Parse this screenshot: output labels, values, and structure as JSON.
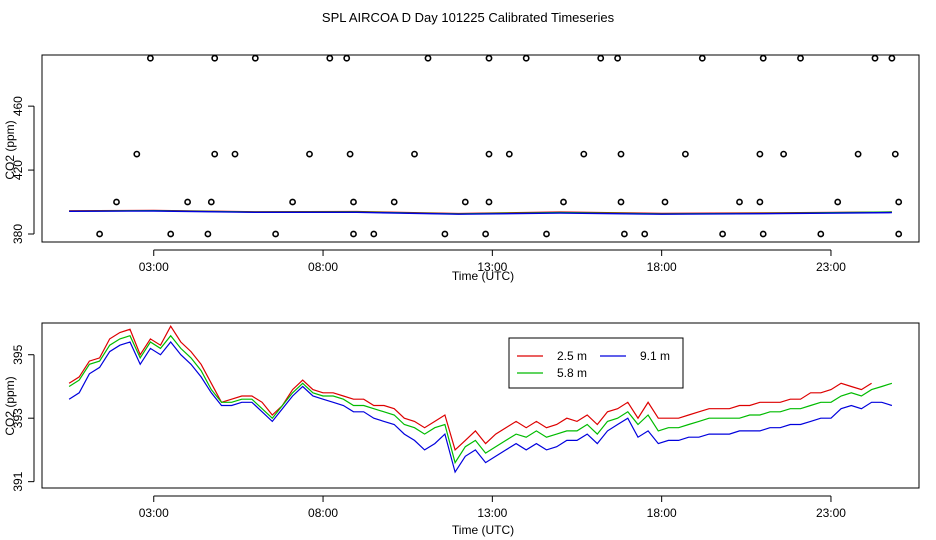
{
  "title": "SPL AIRCOA D  Day 101225  Calibrated Timeseries",
  "colors": {
    "s25": "#dd0000",
    "s58": "#00bb00",
    "s91": "#0000dd",
    "axis": "#000000"
  },
  "chart_data": [
    {
      "type": "scatter",
      "xlabel": "Time (UTC)",
      "ylabel": "CO2 (ppm)",
      "xlim": [
        -0.3,
        25.6
      ],
      "ylim": [
        375,
        492
      ],
      "xticks": [
        3,
        8,
        13,
        18,
        23
      ],
      "xtick_labels": [
        "03:00",
        "08:00",
        "13:00",
        "18:00",
        "23:00"
      ],
      "yticks": [
        380,
        420,
        460
      ],
      "ytick_labels": [
        "380",
        "420",
        "460"
      ],
      "points": [
        [
          1.4,
          380
        ],
        [
          1.9,
          400
        ],
        [
          2.5,
          430
        ],
        [
          2.9,
          490
        ],
        [
          3.5,
          380
        ],
        [
          4.0,
          400
        ],
        [
          4.6,
          380
        ],
        [
          4.7,
          400
        ],
        [
          4.8,
          430
        ],
        [
          4.8,
          490
        ],
        [
          5.4,
          430
        ],
        [
          6.0,
          490
        ],
        [
          6.6,
          380
        ],
        [
          7.1,
          400
        ],
        [
          7.6,
          430
        ],
        [
          8.2,
          490
        ],
        [
          8.7,
          490
        ],
        [
          8.8,
          430
        ],
        [
          8.9,
          400
        ],
        [
          8.9,
          380
        ],
        [
          9.5,
          380
        ],
        [
          10.1,
          400
        ],
        [
          10.7,
          430
        ],
        [
          11.1,
          490
        ],
        [
          11.6,
          380
        ],
        [
          12.2,
          400
        ],
        [
          12.8,
          380
        ],
        [
          12.9,
          400
        ],
        [
          12.9,
          430
        ],
        [
          12.9,
          490
        ],
        [
          13.5,
          430
        ],
        [
          14.0,
          490
        ],
        [
          14.6,
          380
        ],
        [
          15.1,
          400
        ],
        [
          15.7,
          430
        ],
        [
          16.2,
          490
        ],
        [
          16.7,
          490
        ],
        [
          16.8,
          430
        ],
        [
          16.8,
          400
        ],
        [
          16.9,
          380
        ],
        [
          17.5,
          380
        ],
        [
          18.1,
          400
        ],
        [
          18.7,
          430
        ],
        [
          19.2,
          490
        ],
        [
          19.8,
          380
        ],
        [
          20.3,
          400
        ],
        [
          20.9,
          430
        ],
        [
          20.9,
          400
        ],
        [
          21.0,
          490
        ],
        [
          21.0,
          380
        ],
        [
          21.6,
          430
        ],
        [
          22.1,
          490
        ],
        [
          22.7,
          380
        ],
        [
          23.2,
          400
        ],
        [
          23.8,
          430
        ],
        [
          24.3,
          490
        ],
        [
          24.8,
          490
        ],
        [
          24.9,
          430
        ],
        [
          25.0,
          400
        ],
        [
          25.0,
          380
        ]
      ],
      "series": [
        {
          "name": "2.5 m",
          "values_hint": "near 393-395"
        }
      ],
      "lines": [
        {
          "name": "2.5 m",
          "color_key": "s25",
          "x": [
            0.5,
            3,
            6,
            9,
            12,
            15,
            18,
            21,
            24.8
          ],
          "y": [
            394.5,
            394.8,
            393.9,
            394.0,
            392.8,
            393.7,
            392.9,
            393.2,
            393.8
          ]
        },
        {
          "name": "5.8 m",
          "color_key": "s58",
          "x": [
            0.5,
            3,
            6,
            9,
            12,
            15,
            18,
            21,
            24.8
          ],
          "y": [
            394.3,
            394.6,
            393.7,
            393.8,
            392.6,
            393.4,
            392.6,
            392.9,
            393.7
          ]
        },
        {
          "name": "9.1 m",
          "color_key": "s91",
          "x": [
            0.5,
            3,
            6,
            9,
            12,
            15,
            18,
            21,
            24.8
          ],
          "y": [
            394.2,
            394.4,
            393.6,
            393.6,
            392.4,
            393.1,
            392.4,
            392.7,
            393.4
          ]
        }
      ]
    },
    {
      "type": "line",
      "xlabel": "Time (UTC)",
      "ylabel": "CO2 (ppm)",
      "xlim": [
        -0.3,
        25.6
      ],
      "ylim": [
        390.8,
        396.0
      ],
      "xticks": [
        3,
        8,
        13,
        18,
        23
      ],
      "xtick_labels": [
        "03:00",
        "08:00",
        "13:00",
        "18:00",
        "23:00"
      ],
      "yticks": [
        391,
        393,
        395
      ],
      "ytick_labels": [
        "391",
        "393",
        "395"
      ],
      "legend_position": "top-center",
      "series": [
        {
          "name": "2.5 m",
          "color_key": "s25",
          "x": [
            0.5,
            0.8,
            1.1,
            1.4,
            1.7,
            2.0,
            2.3,
            2.6,
            2.9,
            3.2,
            3.5,
            3.8,
            4.1,
            4.4,
            4.7,
            5.0,
            5.3,
            5.6,
            5.9,
            6.2,
            6.5,
            6.8,
            7.1,
            7.4,
            7.7,
            8.0,
            8.3,
            8.6,
            8.9,
            9.2,
            9.5,
            9.8,
            10.1,
            10.4,
            10.7,
            11.0,
            11.3,
            11.6,
            11.9,
            12.2,
            12.5,
            12.8,
            13.1,
            13.4,
            13.7,
            14.0,
            14.3,
            14.6,
            14.9,
            15.2,
            15.5,
            15.8,
            16.1,
            16.4,
            16.7,
            17.0,
            17.3,
            17.6,
            17.9,
            18.2,
            18.5,
            18.8,
            19.1,
            19.4,
            19.7,
            20.0,
            20.3,
            20.6,
            20.9,
            21.2,
            21.5,
            21.8,
            22.1,
            22.4,
            22.7,
            23.0,
            23.3,
            23.6,
            23.9,
            24.2
          ],
          "y": [
            394.1,
            394.3,
            394.8,
            394.9,
            395.5,
            395.7,
            395.8,
            395.0,
            395.5,
            395.3,
            395.9,
            395.4,
            395.1,
            394.7,
            394.1,
            393.5,
            393.6,
            393.7,
            393.7,
            393.5,
            393.1,
            393.4,
            393.9,
            394.2,
            393.9,
            393.8,
            393.8,
            393.7,
            393.6,
            393.6,
            393.4,
            393.4,
            393.3,
            393.0,
            392.9,
            392.7,
            392.9,
            393.1,
            392.0,
            392.3,
            392.6,
            392.2,
            392.5,
            392.7,
            392.9,
            392.7,
            392.9,
            392.7,
            392.8,
            393.0,
            392.9,
            393.1,
            392.8,
            393.2,
            393.3,
            393.5,
            393.0,
            393.5,
            393.0,
            393.0,
            393.0,
            393.1,
            393.2,
            393.3,
            393.3,
            393.3,
            393.4,
            393.4,
            393.5,
            393.5,
            393.5,
            393.6,
            393.6,
            393.8,
            393.8,
            393.9,
            394.1,
            394.0,
            393.9,
            394.1
          ]
        },
        {
          "name": "5.8 m",
          "color_key": "s58",
          "x": [
            0.5,
            0.8,
            1.1,
            1.4,
            1.7,
            2.0,
            2.3,
            2.6,
            2.9,
            3.2,
            3.5,
            3.8,
            4.1,
            4.4,
            4.7,
            5.0,
            5.3,
            5.6,
            5.9,
            6.2,
            6.5,
            6.8,
            7.1,
            7.4,
            7.7,
            8.0,
            8.3,
            8.6,
            8.9,
            9.2,
            9.5,
            9.8,
            10.1,
            10.4,
            10.7,
            11.0,
            11.3,
            11.6,
            11.9,
            12.2,
            12.5,
            12.8,
            13.1,
            13.4,
            13.7,
            14.0,
            14.3,
            14.6,
            14.9,
            15.2,
            15.5,
            15.8,
            16.1,
            16.4,
            16.7,
            17.0,
            17.3,
            17.6,
            17.9,
            18.2,
            18.5,
            18.8,
            19.1,
            19.4,
            19.7,
            20.0,
            20.3,
            20.6,
            20.9,
            21.2,
            21.5,
            21.8,
            22.1,
            22.4,
            22.7,
            23.0,
            23.3,
            23.6,
            23.9,
            24.2,
            24.5,
            24.8
          ],
          "y": [
            394.0,
            394.2,
            394.7,
            394.8,
            395.3,
            395.5,
            395.6,
            394.9,
            395.4,
            395.2,
            395.6,
            395.2,
            394.9,
            394.5,
            393.9,
            393.5,
            393.5,
            393.6,
            393.6,
            393.3,
            393.0,
            393.4,
            393.8,
            394.1,
            393.8,
            393.7,
            393.7,
            393.6,
            393.4,
            393.4,
            393.3,
            393.2,
            393.1,
            392.8,
            392.7,
            392.5,
            392.7,
            392.8,
            391.6,
            392.1,
            392.3,
            391.9,
            392.1,
            392.3,
            392.5,
            392.4,
            392.6,
            392.4,
            392.5,
            392.6,
            392.6,
            392.8,
            392.5,
            392.9,
            393.0,
            393.2,
            392.8,
            393.1,
            392.6,
            392.7,
            392.7,
            392.8,
            392.9,
            393.0,
            393.0,
            393.0,
            393.0,
            393.1,
            393.1,
            393.2,
            393.2,
            393.3,
            393.3,
            393.4,
            393.5,
            393.5,
            393.7,
            393.8,
            393.7,
            393.9,
            394.0,
            394.1
          ]
        },
        {
          "name": "9.1 m",
          "color_key": "s91",
          "x": [
            0.5,
            0.8,
            1.1,
            1.4,
            1.7,
            2.0,
            2.3,
            2.6,
            2.9,
            3.2,
            3.5,
            3.8,
            4.1,
            4.4,
            4.7,
            5.0,
            5.3,
            5.6,
            5.9,
            6.2,
            6.5,
            6.8,
            7.1,
            7.4,
            7.7,
            8.0,
            8.3,
            8.6,
            8.9,
            9.2,
            9.5,
            9.8,
            10.1,
            10.4,
            10.7,
            11.0,
            11.3,
            11.6,
            11.9,
            12.2,
            12.5,
            12.8,
            13.1,
            13.4,
            13.7,
            14.0,
            14.3,
            14.6,
            14.9,
            15.2,
            15.5,
            15.8,
            16.1,
            16.4,
            16.7,
            17.0,
            17.3,
            17.6,
            17.9,
            18.2,
            18.5,
            18.8,
            19.1,
            19.4,
            19.7,
            20.0,
            20.3,
            20.6,
            20.9,
            21.2,
            21.5,
            21.8,
            22.1,
            22.4,
            22.7,
            23.0,
            23.3,
            23.6,
            23.9,
            24.2,
            24.5,
            24.8
          ],
          "y": [
            393.6,
            393.8,
            394.4,
            394.6,
            395.1,
            395.3,
            395.4,
            394.7,
            395.2,
            395.0,
            395.4,
            395.0,
            394.7,
            394.3,
            393.8,
            393.4,
            393.4,
            393.5,
            393.5,
            393.2,
            392.9,
            393.3,
            393.7,
            394.0,
            393.7,
            393.6,
            393.5,
            393.4,
            393.2,
            393.2,
            393.0,
            392.9,
            392.8,
            392.5,
            392.3,
            392.0,
            392.2,
            392.5,
            391.3,
            391.8,
            392.0,
            391.6,
            391.8,
            392.0,
            392.2,
            392.0,
            392.2,
            392.0,
            392.1,
            392.3,
            392.3,
            392.5,
            392.2,
            392.6,
            392.8,
            393.0,
            392.4,
            392.6,
            392.2,
            392.3,
            392.3,
            392.4,
            392.4,
            392.5,
            392.5,
            392.5,
            392.6,
            392.6,
            392.6,
            392.7,
            392.7,
            392.8,
            392.8,
            392.9,
            393.0,
            393.0,
            393.3,
            393.4,
            393.3,
            393.5,
            393.5,
            393.4
          ]
        }
      ]
    }
  ]
}
